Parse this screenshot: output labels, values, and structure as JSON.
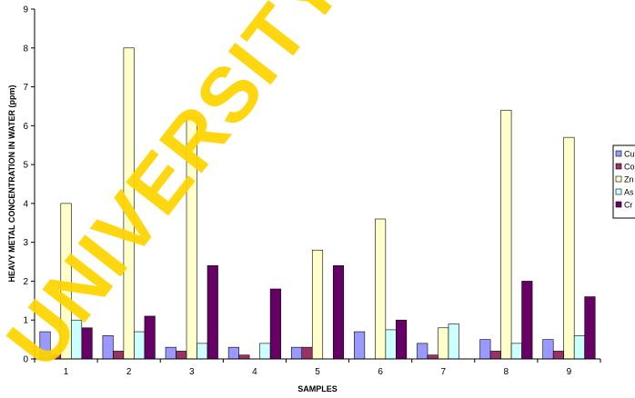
{
  "chart_data": {
    "type": "bar",
    "title": "",
    "xlabel": "SAMPLES",
    "ylabel": "HEAVY METAL CONCENTRATION IN WATER (ppm)",
    "ylim": [
      0,
      9
    ],
    "yticks": [
      0,
      1,
      2,
      3,
      4,
      5,
      6,
      7,
      8,
      9
    ],
    "categories": [
      "1",
      "2",
      "3",
      "4",
      "5",
      "6",
      "7",
      "8",
      "9"
    ],
    "grid": false,
    "legend_position": "right",
    "series": [
      {
        "name": "Cu",
        "color": "#9999ff",
        "values": [
          0.7,
          0.6,
          0.3,
          0.3,
          0.3,
          0.7,
          0.4,
          0.5,
          0.5
        ]
      },
      {
        "name": "Co",
        "color": "#993366",
        "values": [
          0.1,
          0.2,
          0.2,
          0.1,
          0.3,
          0.0,
          0.1,
          0.2,
          0.2
        ]
      },
      {
        "name": "Zn",
        "color": "#ffffcc",
        "values": [
          4.0,
          8.0,
          6.2,
          0.0,
          2.8,
          3.6,
          0.8,
          6.4,
          5.7
        ]
      },
      {
        "name": "As",
        "color": "#ccffff",
        "values": [
          1.0,
          0.7,
          0.4,
          0.4,
          0.0,
          0.75,
          0.9,
          0.4,
          0.6
        ]
      },
      {
        "name": "Cr",
        "color": "#660066",
        "values": [
          0.8,
          1.1,
          2.4,
          1.8,
          2.4,
          1.0,
          0.0,
          2.0,
          1.6
        ]
      }
    ]
  },
  "watermark": "UNIVERSITY"
}
